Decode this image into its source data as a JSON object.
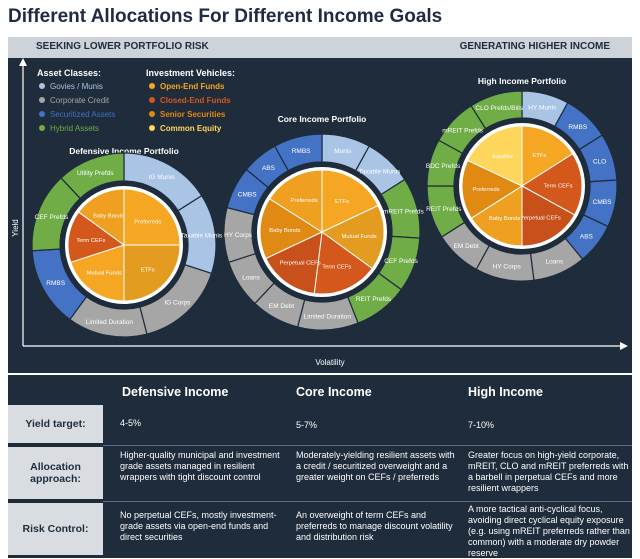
{
  "title": "Different Allocations For Different Income Goals",
  "topbar": {
    "left": "SEEKING LOWER PORTFOLIO RISK",
    "right": "GENERATING HIGHER INCOME"
  },
  "axes": {
    "ylabel": "Yield",
    "xlabel": "Volatility"
  },
  "legend": {
    "asset_classes_title": "Asset Classes:",
    "asset_classes": [
      {
        "label": "Govies / Munis",
        "color": "#a9c4e4"
      },
      {
        "label": "Corporate Credit",
        "color": "#a6a6a6"
      },
      {
        "label": "Securitized Assets",
        "color": "#4472c4"
      },
      {
        "label": "Hybrid Assets",
        "color": "#70ad47"
      }
    ],
    "vehicles_title": "Investment Vehicles:",
    "vehicles": [
      {
        "label": "Open-End Funds",
        "color": "#f5a623"
      },
      {
        "label": "Closed-End Funds",
        "color": "#d4581c"
      },
      {
        "label": "Senior Securities",
        "color": "#e08a14"
      },
      {
        "label": "Common Equity",
        "color": "#ffd65c"
      }
    ]
  },
  "chart_data": [
    {
      "type": "pie",
      "title": "Defensive Income Portfolio",
      "inner": [
        {
          "label": "Preferreds",
          "value": 25,
          "color": "#f5a623"
        },
        {
          "label": "ETFs",
          "value": 25,
          "color": "#e39c1f"
        },
        {
          "label": "Mutual Funds",
          "value": 20,
          "color": "#f5a623"
        },
        {
          "label": "Term CEFs",
          "value": 15,
          "color": "#d4581c"
        },
        {
          "label": "Baby Bonds",
          "value": 15,
          "color": "#f0a020"
        }
      ],
      "outer": [
        {
          "label": "IG Munis",
          "value": 16,
          "color": "#a9c4e4"
        },
        {
          "label": "Taxable Munis",
          "value": 14,
          "color": "#a9c4e4"
        },
        {
          "label": "IG Corps",
          "value": 16,
          "color": "#a6a6a6"
        },
        {
          "label": "Limited Duration",
          "value": 14,
          "color": "#a6a6a6"
        },
        {
          "label": "RMBS",
          "value": 14,
          "color": "#4472c4"
        },
        {
          "label": "CEF Prefds",
          "value": 14,
          "color": "#70ad47"
        },
        {
          "label": "Utility Prefds",
          "value": 12,
          "color": "#70ad47"
        }
      ]
    },
    {
      "type": "pie",
      "title": "Core Income Portfolio",
      "inner": [
        {
          "label": "ETFs",
          "value": 18,
          "color": "#f5a623"
        },
        {
          "label": "Mutual Funds",
          "value": 17,
          "color": "#e39c1f"
        },
        {
          "label": "Term CEFs",
          "value": 17,
          "color": "#d4581c"
        },
        {
          "label": "Perpetual CEFs",
          "value": 16,
          "color": "#c8501a"
        },
        {
          "label": "Baby Bonds",
          "value": 16,
          "color": "#e08a14"
        },
        {
          "label": "Preferreds",
          "value": 16,
          "color": "#f0a020"
        }
      ],
      "outer": [
        {
          "label": "Munis",
          "value": 8,
          "color": "#a9c4e4"
        },
        {
          "label": "Taxable Munis",
          "value": 8,
          "color": "#a9c4e4"
        },
        {
          "label": "mREIT Prefds",
          "value": 10,
          "color": "#70ad47"
        },
        {
          "label": "CEF Prefds",
          "value": 9,
          "color": "#70ad47"
        },
        {
          "label": "REIT Prefds",
          "value": 9,
          "color": "#70ad47"
        },
        {
          "label": "Limited Duration",
          "value": 10,
          "color": "#a6a6a6"
        },
        {
          "label": "EM Debt",
          "value": 8,
          "color": "#a6a6a6"
        },
        {
          "label": "Loans",
          "value": 8,
          "color": "#a6a6a6"
        },
        {
          "label": "HY Corps",
          "value": 9,
          "color": "#a6a6a6"
        },
        {
          "label": "CMBS",
          "value": 7,
          "color": "#4472c4"
        },
        {
          "label": "ABS",
          "value": 6,
          "color": "#4472c4"
        },
        {
          "label": "RMBS",
          "value": 8,
          "color": "#4472c4"
        }
      ]
    },
    {
      "type": "pie",
      "title": "High Income Portfolio",
      "inner": [
        {
          "label": "ETFs",
          "value": 16,
          "color": "#f5a623"
        },
        {
          "label": "Term CEFs",
          "value": 17,
          "color": "#d4581c"
        },
        {
          "label": "Perpetual CEFs",
          "value": 17,
          "color": "#c8501a"
        },
        {
          "label": "Baby Bonds",
          "value": 16,
          "color": "#f0a020"
        },
        {
          "label": "Preferreds",
          "value": 16,
          "color": "#e08a14"
        },
        {
          "label": "Equities",
          "value": 18,
          "color": "#ffd65c"
        }
      ],
      "outer": [
        {
          "label": "HY Munis",
          "value": 8,
          "color": "#a9c4e4"
        },
        {
          "label": "RMBS",
          "value": 8,
          "color": "#4472c4"
        },
        {
          "label": "CLO",
          "value": 8,
          "color": "#4472c4"
        },
        {
          "label": "CMBS",
          "value": 8,
          "color": "#4472c4"
        },
        {
          "label": "ABS",
          "value": 7,
          "color": "#4472c4"
        },
        {
          "label": "Loans",
          "value": 9,
          "color": "#a6a6a6"
        },
        {
          "label": "HY Corps",
          "value": 10,
          "color": "#a6a6a6"
        },
        {
          "label": "EM Debt",
          "value": 8,
          "color": "#a6a6a6"
        },
        {
          "label": "REIT Prefds",
          "value": 9,
          "color": "#70ad47"
        },
        {
          "label": "BDC Prefds",
          "value": 8,
          "color": "#70ad47"
        },
        {
          "label": "mREIT Prefds",
          "value": 8,
          "color": "#70ad47"
        },
        {
          "label": "CLO Prefds/Bills",
          "value": 9,
          "color": "#70ad47"
        }
      ]
    }
  ],
  "table": {
    "headers": [
      "Defensive Income",
      "Core Income",
      "High Income"
    ],
    "rows": [
      {
        "label": "Yield target:",
        "cells": [
          "4-5%",
          "5-7%",
          "7-10%"
        ]
      },
      {
        "label": "Allocation approach:",
        "cells": [
          "Higher-quality municipal and investment grade assets managed in resilient wrappers with tight discount control",
          "Moderately-yielding resilient assets with a credit / securitized overweight and a greater weight on CEFs / preferreds",
          "Greater focus on high-yield corporate, mREIT, CLO and mREIT preferreds with a barbell in perpetual CEFs and more resilient wrappers"
        ]
      },
      {
        "label": "Risk Control:",
        "cells": [
          "No perpetual CEFs, mostly investment-grade assets via open-end funds and direct securities",
          "An overweight of term CEFs and preferreds to manage discount volatility and distribution risk",
          "A more tactical anti-cyclical focus, avoiding direct cyclical equity exposure (e.g. using mREIT preferreds rather than common) with a moderate dry powder reserve"
        ]
      }
    ]
  }
}
